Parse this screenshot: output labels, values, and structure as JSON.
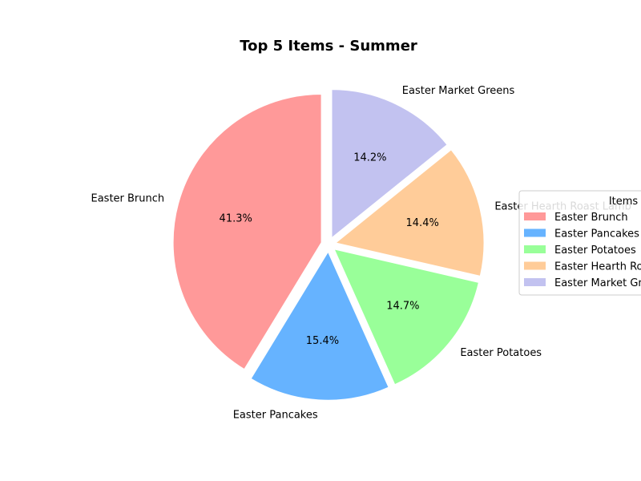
{
  "chart_data": {
    "type": "pie",
    "title": "Top 5 Items - Summer",
    "slices": [
      {
        "label": "Easter Brunch",
        "value": 41.3,
        "pct_label": "41.3%",
        "color": "#ff9999"
      },
      {
        "label": "Easter Pancakes",
        "value": 15.4,
        "pct_label": "15.4%",
        "color": "#66b3ff"
      },
      {
        "label": "Easter Potatoes",
        "value": 14.7,
        "pct_label": "14.7%",
        "color": "#99ff99"
      },
      {
        "label": "Easter Hearth Roast Lamb",
        "value": 14.4,
        "pct_label": "14.4%",
        "color": "#ffcc99"
      },
      {
        "label": "Easter Market Greens",
        "value": 14.2,
        "pct_label": "14.2%",
        "color": "#c2c2f0"
      }
    ],
    "legend": {
      "title": "Items",
      "placement": "right"
    }
  }
}
